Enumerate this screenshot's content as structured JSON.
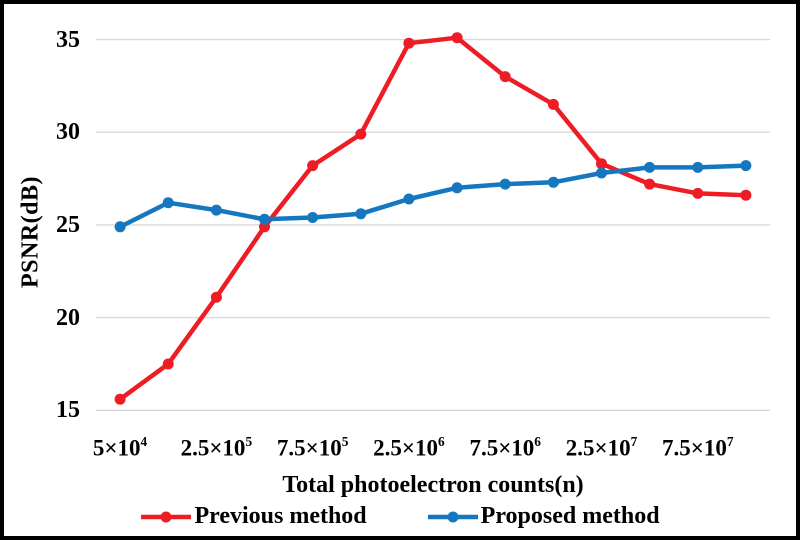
{
  "chart_data": {
    "type": "line",
    "title": "",
    "xlabel": "Total photoelectron counts(n)",
    "ylabel": "PSNR(dB)",
    "yticks": [
      15,
      20,
      25,
      30,
      35
    ],
    "ylim": [
      15,
      36
    ],
    "grid": "horizontal",
    "gridline_color": "#d9d9d9",
    "background": "#ffffff",
    "border_color": "#000000",
    "legend_position": "bottom",
    "n_points": 14,
    "x_tick_labels": [
      {
        "index": 0,
        "base": "5×10",
        "exp": "4"
      },
      {
        "index": 2,
        "base": "2.5×10",
        "exp": "5"
      },
      {
        "index": 4,
        "base": "7.5×10",
        "exp": "5"
      },
      {
        "index": 6,
        "base": "2.5×10",
        "exp": "6"
      },
      {
        "index": 8,
        "base": "7.5×10",
        "exp": "6"
      },
      {
        "index": 10,
        "base": "2.5×10",
        "exp": "7"
      },
      {
        "index": 12,
        "base": "7.5×10",
        "exp": "7"
      }
    ],
    "series": [
      {
        "name": "Previous method",
        "color": "#ee1c25",
        "values": [
          15.6,
          17.5,
          21.1,
          24.9,
          28.2,
          29.9,
          34.8,
          35.1,
          33.0,
          31.5,
          28.3,
          27.2,
          26.7,
          26.6
        ]
      },
      {
        "name": "Proposed method",
        "color": "#1577c0",
        "values": [
          24.9,
          26.2,
          25.8,
          25.3,
          25.4,
          25.6,
          26.4,
          27.0,
          27.2,
          27.3,
          27.8,
          28.1,
          28.1,
          28.2
        ]
      }
    ]
  }
}
